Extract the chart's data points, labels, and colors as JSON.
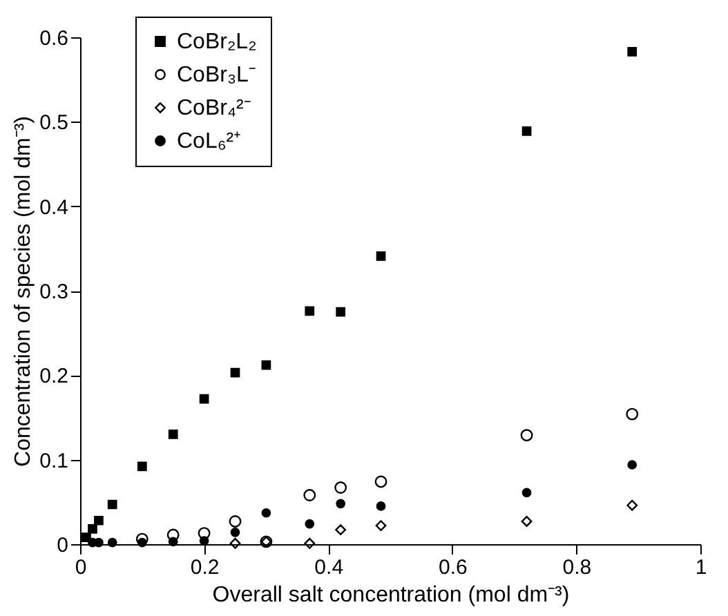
{
  "chart_data": {
    "type": "scatter",
    "xlabel": "Overall salt concentration (mol dm⁻³)",
    "ylabel": "Concentration of species (mol dm⁻³)",
    "xlim": [
      0,
      1
    ],
    "ylim": [
      0,
      0.6
    ],
    "xticks": [
      0,
      0.2,
      0.4,
      0.6,
      0.8,
      1
    ],
    "yticks": [
      0,
      0.1,
      0.2,
      0.3,
      0.4,
      0.5,
      0.6
    ],
    "grid": false,
    "legend": "top left",
    "series": [
      {
        "name": "CoBr₂L₂",
        "color": "#000000",
        "marker": "square",
        "x": [
          0.01,
          0.02,
          0.03,
          0.052,
          0.1,
          0.15,
          0.2,
          0.25,
          0.3,
          0.37,
          0.42,
          0.485,
          0.72,
          0.89
        ],
        "values": [
          0.008,
          0.018,
          0.028,
          0.047,
          0.092,
          0.13,
          0.172,
          0.203,
          0.212,
          0.276,
          0.275,
          0.341,
          0.489,
          0.583
        ]
      },
      {
        "name": "CoBr₃L⁻",
        "color": "#000000",
        "marker": "circle",
        "x": [
          0.1,
          0.15,
          0.2,
          0.25,
          0.3,
          0.37,
          0.42,
          0.485,
          0.72,
          0.89
        ],
        "values": [
          0.006,
          0.011,
          0.013,
          0.027,
          0.003,
          0.058,
          0.067,
          0.074,
          0.129,
          0.154
        ]
      },
      {
        "name": "CoBr₄²⁻",
        "color": "#000000",
        "marker": "diamond",
        "x": [
          0.25,
          0.3,
          0.37,
          0.42,
          0.485,
          0.72,
          0.89
        ],
        "values": [
          0.001,
          0.003,
          0.001,
          0.017,
          0.022,
          0.027,
          0.046
        ]
      },
      {
        "name": "CoL₆²⁺",
        "color": "#000000",
        "marker": "circle",
        "x": [
          0.02,
          0.03,
          0.052,
          0.1,
          0.15,
          0.2,
          0.25,
          0.3,
          0.37,
          0.42,
          0.485,
          0.72,
          0.89
        ],
        "values": [
          0.002,
          0.002,
          0.002,
          0.002,
          0.003,
          0.004,
          0.014,
          0.037,
          0.024,
          0.048,
          0.045,
          0.061,
          0.094
        ]
      }
    ]
  }
}
